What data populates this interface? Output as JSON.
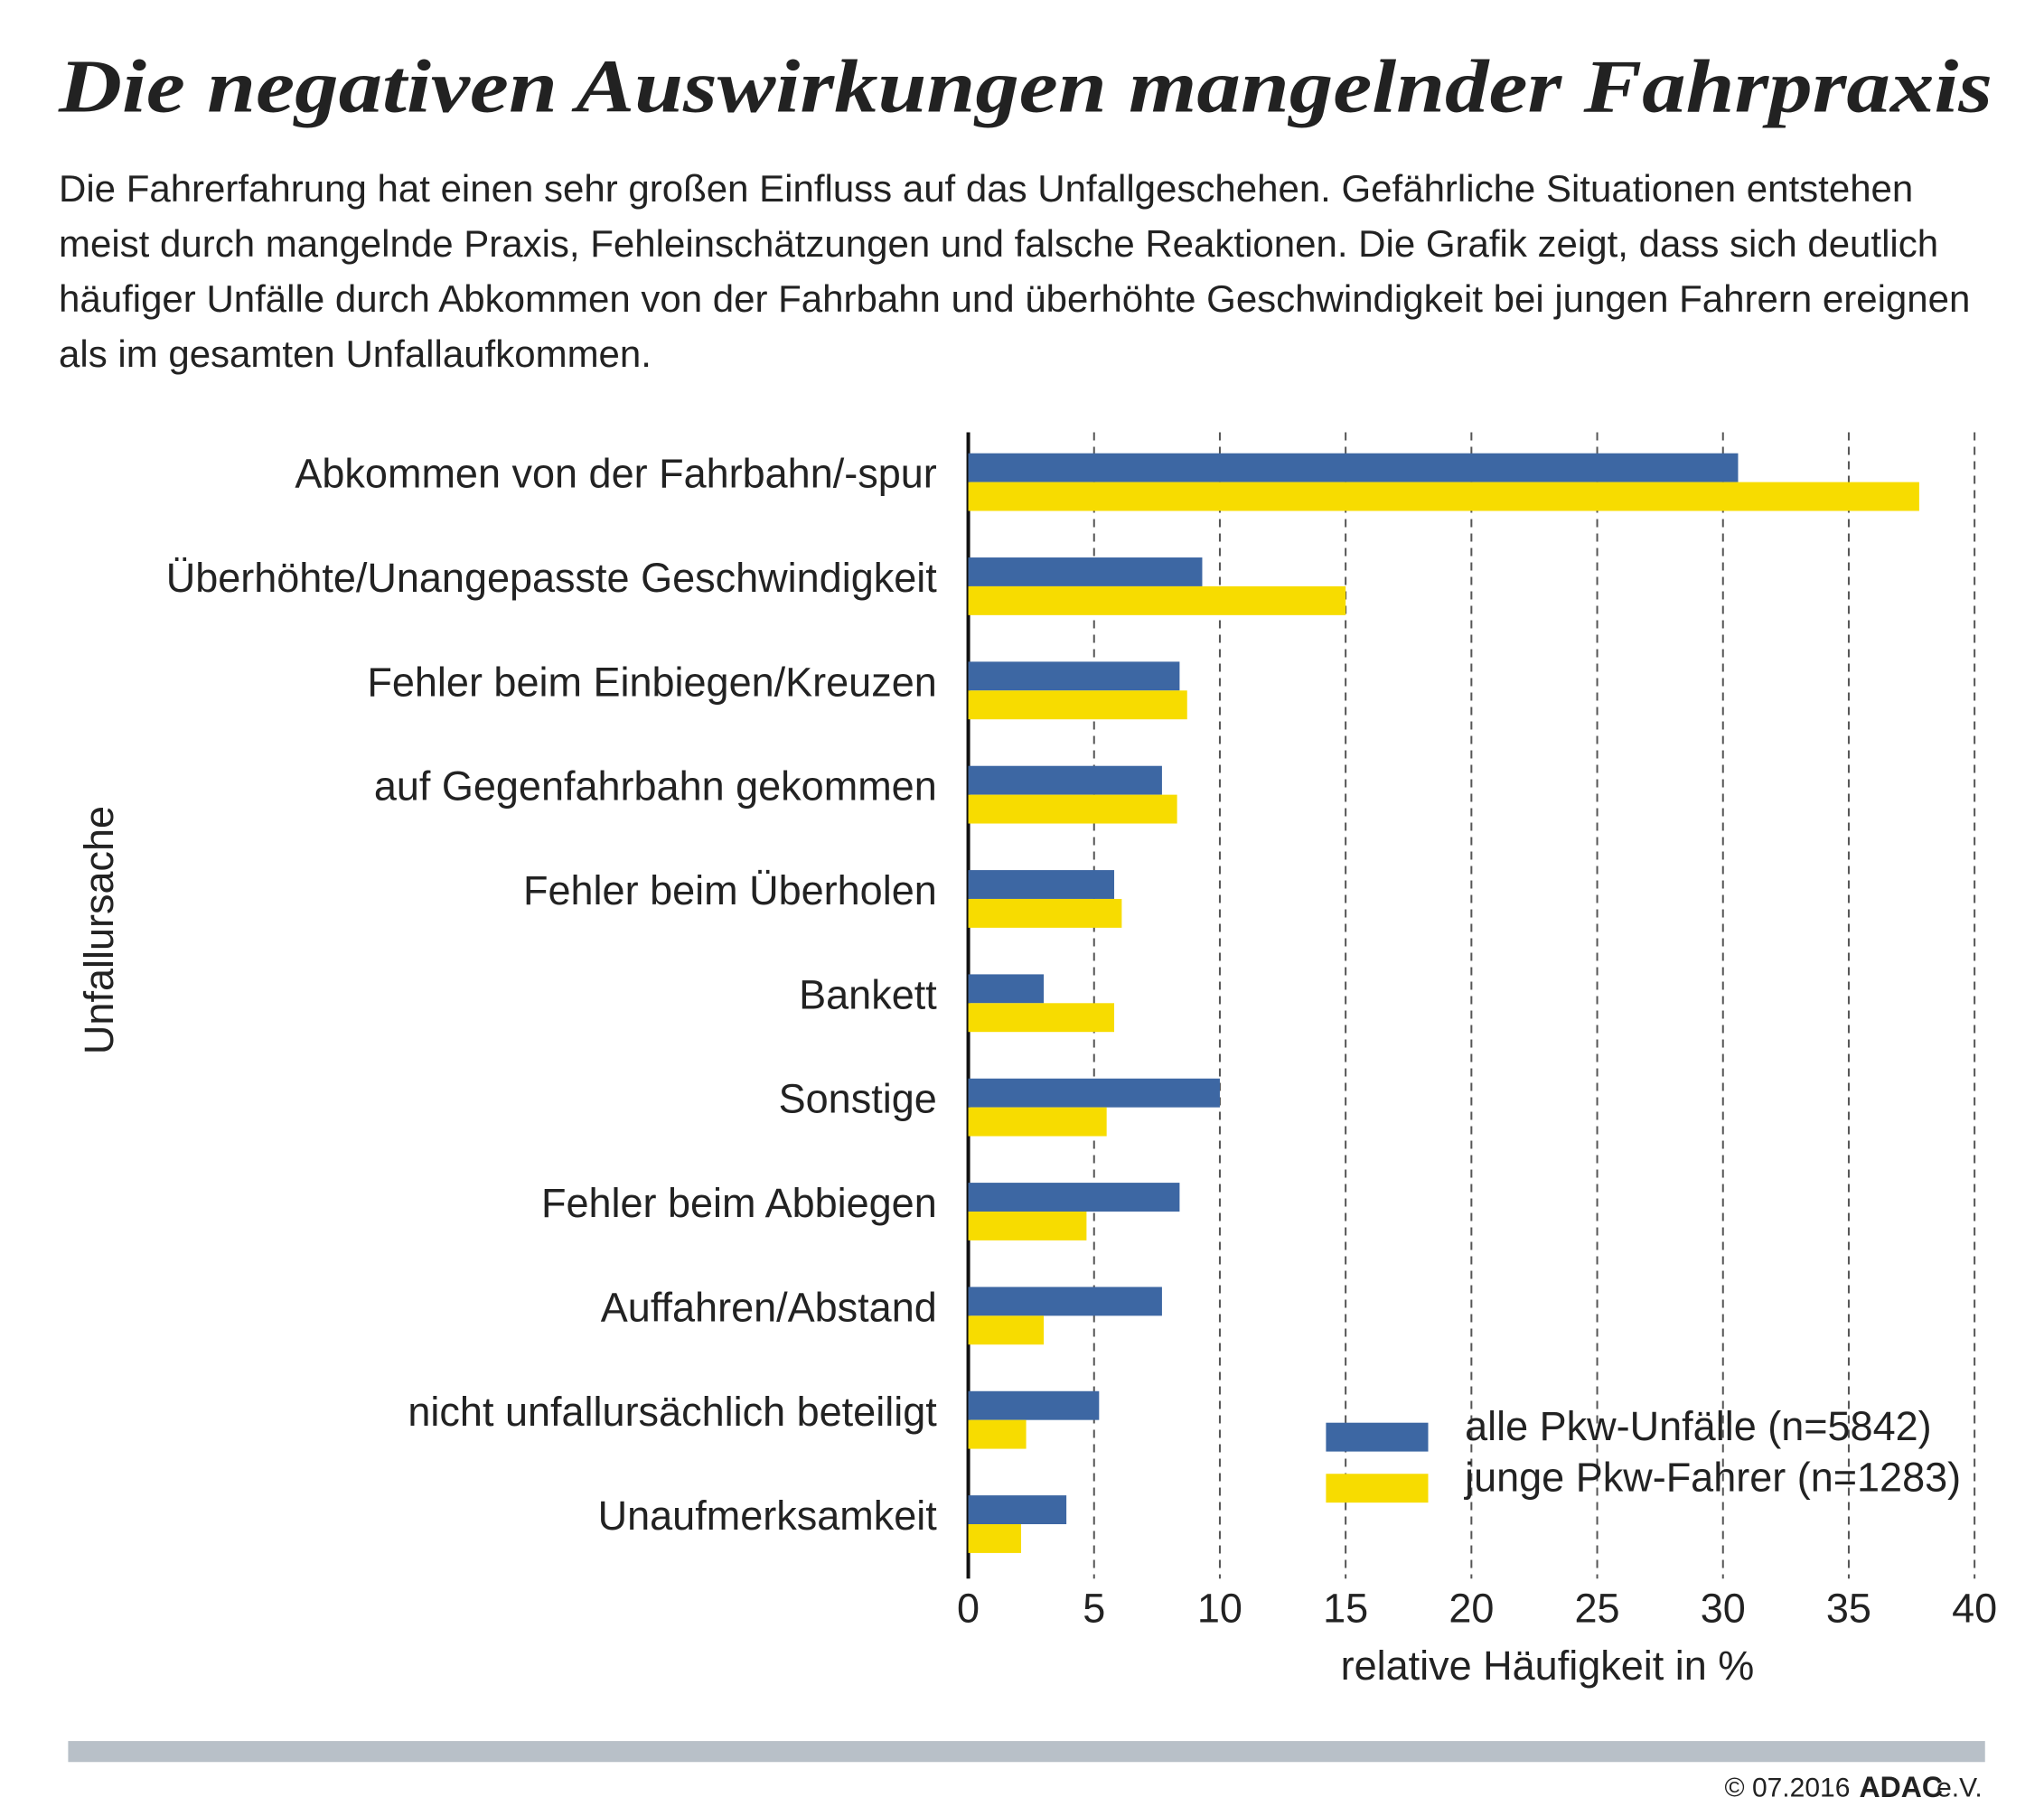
{
  "chart_data": {
    "type": "barh",
    "title": "Die negativen Auswirkungen mangelnder Fahrpraxis",
    "subtitle": "Die Fahrerfahrung hat einen sehr großen Einfluss auf das Unfallgeschehen. Gefährliche Situationen entstehen meist durch mangelnde Praxis, Fehleinschätzungen und falsche Reaktionen. Die Grafik zeigt, dass sich deutlich häufiger Unfälle durch Abkommen von der Fahrbahn und überhöhte Geschwindigkeit bei jungen Fahrern ereignen als im gesamten Unfallaufkommen.",
    "y_label": "Unfallursache",
    "x_label": "relative Häufigkeit in %",
    "categories": [
      "Abkommen von der Fahrbahn/-spur",
      "Überhöhte/Unangepasste Geschwindigkeit",
      "Fehler beim Einbiegen/Kreuzen",
      "auf Gegenfahrbahn gekommen",
      "Fehler beim Überholen",
      "Bankett",
      "Sonstige",
      "Fehler beim Abbiegen",
      "Auffahren/Abstand",
      "nicht unfallursächlich beteiligt",
      "Unaufmerksamkeit"
    ],
    "series": [
      {
        "name": "alle Pkw-Unfälle (n=5842)",
        "color": "#3d67a3",
        "values": [
          30.6,
          9.3,
          8.4,
          7.7,
          5.8,
          3.0,
          10.0,
          8.4,
          7.7,
          5.2,
          3.9
        ]
      },
      {
        "name": "junge Pkw-Fahrer (n=1283)",
        "color": "#f7dc00",
        "values": [
          37.8,
          15.0,
          8.7,
          8.3,
          6.1,
          5.8,
          5.5,
          4.7,
          3.0,
          2.3,
          2.1
        ]
      }
    ],
    "xlim": [
      0,
      40
    ],
    "xticks": [
      0,
      5,
      10,
      15,
      20,
      25,
      30,
      35,
      40
    ],
    "grid": true,
    "legend": "lower right"
  },
  "footer": {
    "copyright": "© 07.2016",
    "brand": "ADAC",
    "suffix": "e.V."
  }
}
